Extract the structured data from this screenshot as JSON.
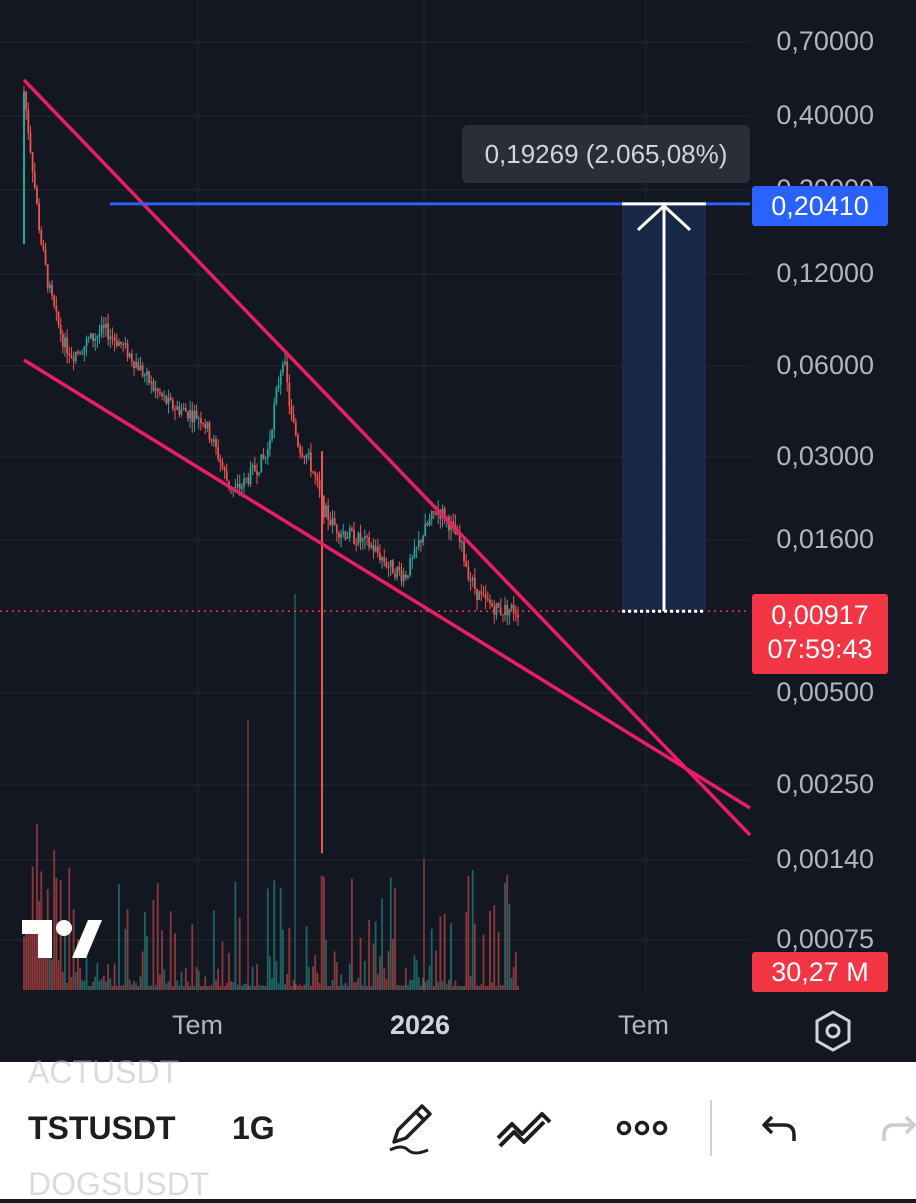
{
  "chart_data": {
    "type": "candlestick",
    "symbol": "TSTUSDT",
    "interval": "1G",
    "y_scale": "log",
    "y_tick_labels": [
      "0,70000",
      "0,40000",
      "0,20000",
      "0,12000",
      "0,06000",
      "0,03000",
      "0,01600",
      "0,00500",
      "0,00250",
      "0,00140",
      "0,00075"
    ],
    "x_tick_labels": [
      "Tem",
      "2026",
      "Tem"
    ],
    "last_price": "0,00917",
    "countdown": "07:59:43",
    "target_price": "0,20410",
    "measure_label": "0,19269 (2.065,08%)",
    "volume_label": "30,27 M",
    "price_path": [
      0.48,
      0.28,
      0.16,
      0.11,
      0.085,
      0.07,
      0.065,
      0.068,
      0.072,
      0.075,
      0.078,
      0.074,
      0.07,
      0.065,
      0.06,
      0.055,
      0.05,
      0.047,
      0.044,
      0.043,
      0.042,
      0.041,
      0.04,
      0.035,
      0.03,
      0.025,
      0.023,
      0.024,
      0.026,
      0.028,
      0.03,
      0.045,
      0.065,
      0.04,
      0.032,
      0.03,
      0.025,
      0.02,
      0.018,
      0.017,
      0.0165,
      0.016,
      0.0155,
      0.015,
      0.014,
      0.013,
      0.0125,
      0.012,
      0.0135,
      0.016,
      0.018,
      0.02,
      0.019,
      0.017,
      0.015,
      0.012,
      0.0105,
      0.0098,
      0.0095,
      0.0092,
      0.0094,
      0.00917
    ],
    "patterns": [
      "falling-wedge upper trendline",
      "falling-wedge lower trendline",
      "horizontal target line"
    ]
  },
  "colors": {
    "background": "#131722",
    "up": "#26a69a",
    "down": "#ef5350",
    "trendline": "#e91e63",
    "target_line": "#2962ff",
    "target_tag": "#2962ff",
    "price_tag": "#f23645",
    "measure_fill": "#1b2a4d"
  },
  "bottom_bar": {
    "symbol_prev": "ACTUSDT",
    "symbol_current": "TSTUSDT",
    "symbol_next": "DOGSUSDT",
    "interval": "1G",
    "tools": [
      "pencil-icon",
      "trend-lines-icon",
      "more-icon",
      "undo-icon",
      "redo-icon"
    ]
  },
  "settings_icon": "gear-hexagon-icon"
}
